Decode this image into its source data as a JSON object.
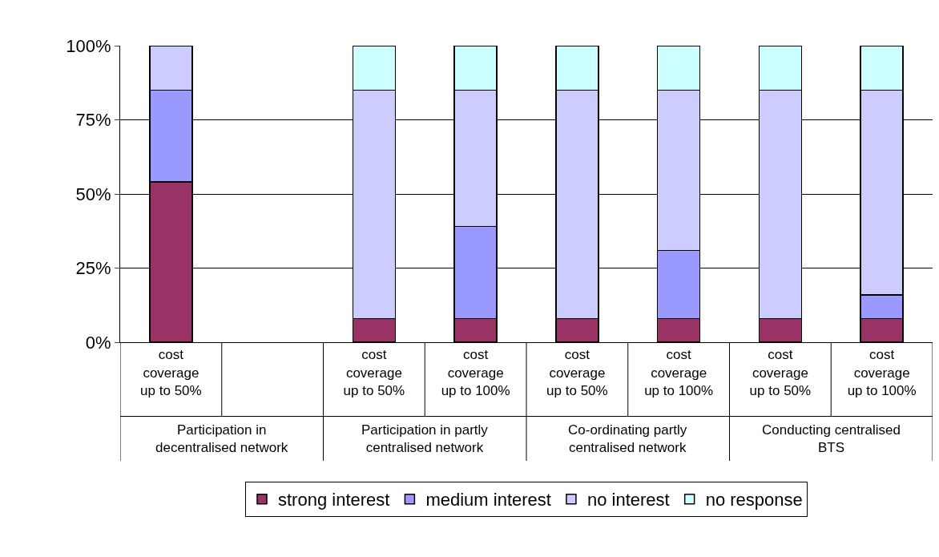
{
  "chart_data": {
    "type": "bar",
    "stacked": true,
    "categories": [
      "cost coverage up to 50%",
      null,
      "cost coverage up to 50%",
      "cost coverage up to 100%",
      "cost coverage up to 50%",
      "cost coverage up to 100%",
      "cost coverage up to 50%",
      "cost coverage up to 100%"
    ],
    "series": [
      {
        "name": "strong interest",
        "color": "#993366",
        "values": [
          54,
          null,
          8,
          8,
          8,
          8,
          8,
          8
        ]
      },
      {
        "name": "medium interest",
        "color": "#9999ff",
        "values": [
          31,
          null,
          0,
          31,
          0,
          23,
          0,
          8
        ]
      },
      {
        "name": "no interest",
        "color": "#ccccff",
        "values": [
          15,
          null,
          77,
          46,
          77,
          54,
          77,
          69
        ]
      },
      {
        "name": "no response",
        "color": "#ccffff",
        "values": [
          0,
          null,
          15,
          15,
          15,
          15,
          15,
          15
        ]
      }
    ],
    "ylim": [
      0,
      100
    ],
    "yticks": [
      {
        "value": 0,
        "label": "0%"
      },
      {
        "value": 25,
        "label": "25%"
      },
      {
        "value": 50,
        "label": "50%"
      },
      {
        "value": 75,
        "label": "75%"
      },
      {
        "value": 100,
        "label": "100%"
      }
    ],
    "grid": "y",
    "legend": "bottom",
    "annotations": [
      "Participation in decentralised network",
      "Participation in partly centralised network",
      "Co-ordinating partly centralised network",
      "Conducting centralised BTS"
    ]
  }
}
